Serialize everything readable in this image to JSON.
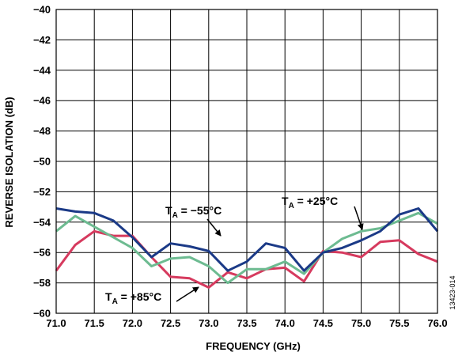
{
  "chart_data": {
    "type": "line",
    "xlabel": "FREQUENCY (GHz)",
    "ylabel": "REVERSE ISOLATION (dB)",
    "xlim": [
      71.0,
      76.0
    ],
    "ylim": [
      -60,
      -40
    ],
    "x_ticks": [
      "71.0",
      "71.5",
      "72.0",
      "72.5",
      "73.0",
      "73.5",
      "74.0",
      "74.5",
      "75.0",
      "75.5",
      "76.0"
    ],
    "y_ticks": [
      "−40",
      "−42",
      "−44",
      "−46",
      "−48",
      "−50",
      "−52",
      "−54",
      "−56",
      "−58",
      "−60"
    ],
    "grid": true,
    "x": [
      71.0,
      71.25,
      71.5,
      71.75,
      72.0,
      72.25,
      72.5,
      72.75,
      73.0,
      73.25,
      73.5,
      73.75,
      74.0,
      74.25,
      74.5,
      74.75,
      75.0,
      75.25,
      75.5,
      75.75,
      76.0
    ],
    "series": [
      {
        "color": "#1b3a87",
        "values": [
          -53.1,
          -53.3,
          -53.4,
          -53.9,
          -55.0,
          -56.3,
          -55.4,
          -55.6,
          -55.9,
          -57.2,
          -56.6,
          -55.4,
          -55.7,
          -57.2,
          -56.0,
          -55.7,
          -55.2,
          -54.6,
          -53.5,
          -53.1,
          -54.6
        ]
      },
      {
        "color": "#6dbb91",
        "values": [
          -54.6,
          -53.6,
          -54.3,
          -55.0,
          -55.7,
          -56.9,
          -56.4,
          -56.3,
          -56.9,
          -58.0,
          -57.1,
          -57.1,
          -56.6,
          -57.4,
          -56.0,
          -55.1,
          -54.6,
          -54.4,
          -53.9,
          -53.4,
          -54.1
        ]
      },
      {
        "color": "#d63a5e",
        "values": [
          -57.2,
          -55.5,
          -54.6,
          -54.9,
          -54.9,
          -56.3,
          -57.6,
          -57.7,
          -58.3,
          -57.3,
          -57.7,
          -57.1,
          -57.0,
          -57.9,
          -55.9,
          -56.0,
          -56.3,
          -55.3,
          -55.2,
          -56.1,
          -56.6
        ]
      }
    ],
    "annotations": [
      {
        "prefix": "T",
        "sub": "A",
        "suffix": " = −55°C"
      },
      {
        "prefix": "T",
        "sub": "A",
        "suffix": " = +25°C"
      },
      {
        "prefix": "T",
        "sub": "A",
        "suffix": " = +85°C"
      }
    ],
    "figure_id": "13423-014"
  }
}
